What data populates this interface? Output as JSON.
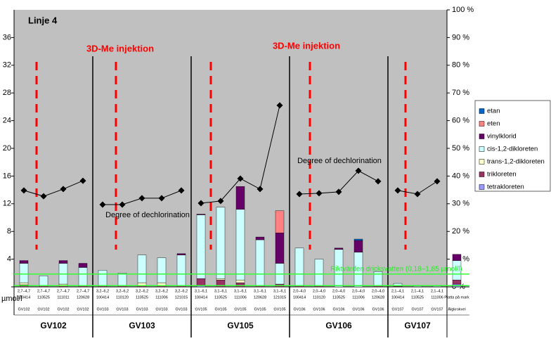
{
  "chart_data": {
    "type": "bar",
    "title": "Linje 4",
    "y_axis_label": "µmol/l",
    "categories": [
      "100414",
      "110525",
      "111011",
      "120628",
      "100414",
      "110120",
      "110525",
      "111006",
      "121015",
      "100414",
      "110525",
      "111006",
      "120628",
      "121015",
      "100414",
      "110120",
      "110525",
      "111006",
      "120628",
      "100414",
      "110525",
      "111006",
      "Platta på mark"
    ],
    "depth_labels": [
      "2,7–4,7",
      "2,7–4,7",
      "2,7–4,7",
      "2,7–4,7",
      "3,2–6,2",
      "3,2–6,2",
      "3,2–6,2",
      "3,2–6,2",
      "3,2–6,2",
      "3,1–6,1",
      "3,1–6,1",
      "3,1–6,1",
      "3,1–6,1",
      "3,1–6,1",
      "2,0–4,0",
      "2,0–4,0",
      "2,0–4,0",
      "2,0–4,0",
      "2,0–4,0",
      "2,1–4,1",
      "2,1–4,1",
      "2,1–4,1",
      null
    ],
    "well_labels": [
      "GV102",
      "GV102",
      "GV102",
      "GV102",
      "GV103",
      "GV103",
      "GV103",
      "GV103",
      "GV103",
      "GV105",
      "GV105",
      "GV105",
      "GV105",
      "GV105",
      "GV106",
      "GV106",
      "GV106",
      "GV106",
      "GV106",
      "GV107",
      "GV107",
      "GV107",
      "Älgkrokvei"
    ],
    "groups": [
      "GV102",
      "GV103",
      "GV105",
      "GV106",
      "GV107"
    ],
    "series": [
      {
        "name": "tetrakloreten",
        "color": "#9999ff",
        "values": [
          0,
          0,
          0,
          0,
          0,
          0,
          0,
          0,
          0,
          0.2,
          0,
          0,
          0,
          0,
          0,
          0,
          0,
          0,
          0,
          0,
          0,
          0,
          0.4
        ]
      },
      {
        "name": "trikloreten",
        "color": "#993366",
        "values": [
          0.3,
          0.2,
          0.2,
          0.2,
          0.2,
          0.2,
          0.2,
          0.2,
          0.2,
          1.0,
          1.0,
          0.6,
          0.2,
          0.4,
          0.2,
          0.2,
          0,
          0,
          0.2,
          0.1,
          0,
          0,
          0.6
        ]
      },
      {
        "name": "trans-1,2-dikloreten",
        "color": "#ffffcc",
        "values": [
          0.3,
          0,
          0.2,
          0,
          0,
          0,
          0.4,
          0.4,
          0,
          0,
          0.2,
          0.4,
          0,
          0,
          0,
          0,
          0,
          0,
          0,
          0,
          0,
          0,
          0
        ]
      },
      {
        "name": "cis-1,2-dikloreten",
        "color": "#ccffff",
        "values": [
          2.8,
          1.4,
          3.0,
          2.6,
          2.2,
          1.8,
          4.0,
          3.6,
          4.4,
          9.2,
          10.3,
          10.2,
          6.6,
          3.0,
          5.4,
          3.8,
          5.4,
          5.0,
          2.0,
          0.4,
          0.1,
          0.1,
          2.8
        ]
      },
      {
        "name": "vinylklorid",
        "color": "#660066",
        "values": [
          0.4,
          0,
          0.4,
          0.6,
          0,
          0,
          0,
          0,
          0.2,
          0.1,
          0,
          3.3,
          0.4,
          4.4,
          0,
          0,
          0.2,
          1.7,
          0,
          0,
          0,
          0,
          0.9
        ]
      },
      {
        "name": "eten",
        "color": "#ff8080",
        "values": [
          0,
          0,
          0,
          0,
          0,
          0,
          0,
          0,
          0,
          0,
          0,
          0,
          0,
          3.2,
          0,
          0,
          0,
          0,
          0,
          0,
          0,
          0,
          0
        ]
      },
      {
        "name": "etan",
        "color": "#0066cc",
        "values": [
          0,
          0,
          0,
          0,
          0,
          0,
          0,
          0,
          0,
          0,
          0,
          0,
          0,
          0,
          0,
          0,
          0,
          0.2,
          0,
          0,
          0,
          0,
          0
        ]
      }
    ],
    "line_series": {
      "axis": "y2",
      "color": "#000000",
      "values": [
        34.8,
        32.7,
        35.3,
        38.3,
        29.7,
        29.7,
        32.0,
        32.0,
        34.8,
        30.2,
        31.0,
        39.1,
        35.3,
        65.5,
        33.5,
        33.8,
        34.3,
        41.9,
        38.1,
        34.8,
        33.5,
        38.1,
        null
      ]
    },
    "annotations": [
      "3D-Me injektion",
      "3D-Me injektion",
      "Degree of dechlorination",
      "Degree of dechlorination",
      "Riktvärden dricksvatten (0,18–1,85 µmol/l)"
    ],
    "guideline_values": [
      0.18,
      1.85
    ],
    "ylim": [
      0,
      40
    ],
    "yticks": [
      0,
      4,
      8,
      12,
      16,
      20,
      24,
      28,
      32,
      36
    ],
    "y2lim": [
      0,
      100
    ],
    "y2ticks": [
      {
        "value": 0,
        "label": "0 %"
      },
      {
        "value": 10,
        "label": "10 %"
      },
      {
        "value": 20,
        "label": "20 %"
      },
      {
        "value": 30,
        "label": "30 %"
      },
      {
        "value": 40,
        "label": "40 %"
      },
      {
        "value": 50,
        "label": "50 %"
      },
      {
        "value": 60,
        "label": "60 %"
      },
      {
        "value": 70,
        "label": "70 %"
      },
      {
        "value": 80,
        "label": "80 %"
      },
      {
        "value": 90,
        "label": "90 %"
      },
      {
        "value": 100,
        "label": "100 %"
      }
    ],
    "legend": "right"
  }
}
